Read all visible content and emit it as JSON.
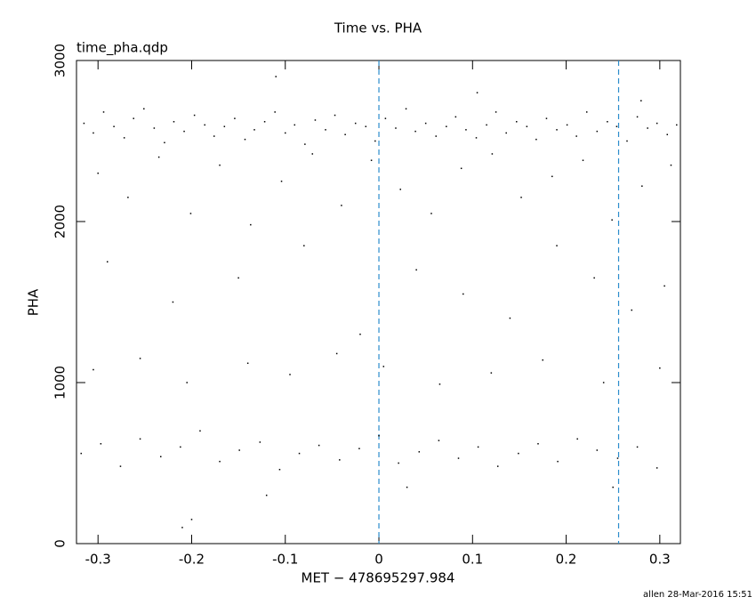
{
  "chart_data": {
    "type": "scatter",
    "title": "Time vs. PHA",
    "label": "time_pha.qdp",
    "xlabel": "MET − 478695297.984",
    "ylabel": "PHA",
    "footer": "allen 28-Mar-2016 15:51",
    "xlim": [
      -0.323,
      0.322
    ],
    "ylim": [
      0,
      3000
    ],
    "xticks": [
      -0.3,
      -0.2,
      -0.1,
      0,
      0.1,
      0.2,
      0.3
    ],
    "yticks": [
      0,
      1000,
      2000,
      3000
    ],
    "vlines": [
      0,
      0.256
    ],
    "vline_color": "#2b8ccc",
    "color": "#000000",
    "x": [
      -0.315,
      -0.305,
      -0.294,
      -0.283,
      -0.272,
      -0.262,
      -0.251,
      -0.24,
      -0.229,
      -0.219,
      -0.208,
      -0.197,
      -0.186,
      -0.176,
      -0.165,
      -0.154,
      -0.143,
      -0.133,
      -0.122,
      -0.111,
      -0.1,
      -0.09,
      -0.079,
      -0.068,
      -0.057,
      -0.047,
      -0.036,
      -0.025,
      -0.014,
      -0.004,
      0.007,
      0.018,
      0.029,
      0.039,
      0.05,
      0.061,
      0.072,
      0.082,
      0.093,
      0.104,
      0.115,
      0.125,
      0.136,
      0.147,
      0.158,
      0.168,
      0.179,
      0.19,
      0.201,
      0.211,
      0.222,
      0.233,
      0.244,
      0.254,
      0.265,
      0.276,
      0.287,
      0.297,
      0.308,
      0.318,
      -0.3,
      -0.268,
      -0.235,
      -0.201,
      -0.17,
      -0.137,
      -0.104,
      -0.071,
      -0.04,
      -0.008,
      0.023,
      0.056,
      0.088,
      0.121,
      0.152,
      0.185,
      0.218,
      0.249,
      0.281,
      0.312,
      -0.29,
      -0.22,
      -0.15,
      -0.08,
      -0.02,
      0.04,
      0.09,
      0.14,
      0.19,
      0.23,
      0.27,
      0.305,
      -0.305,
      -0.255,
      -0.205,
      -0.14,
      -0.095,
      -0.045,
      0.005,
      0.065,
      0.12,
      0.175,
      0.24,
      0.3,
      -0.318,
      -0.297,
      -0.276,
      -0.255,
      -0.233,
      -0.212,
      -0.191,
      -0.17,
      -0.149,
      -0.127,
      -0.106,
      -0.085,
      -0.064,
      -0.042,
      -0.021,
      0.0,
      0.021,
      0.043,
      0.064,
      0.085,
      0.106,
      0.127,
      0.149,
      0.17,
      0.191,
      0.212,
      0.233,
      0.255,
      0.276,
      0.297,
      -0.2,
      -0.21,
      -0.12,
      0.03,
      0.25,
      -0.11,
      0.105,
      0.28
    ],
    "values": [
      2610,
      2550,
      2680,
      2590,
      2520,
      2640,
      2700,
      2580,
      2490,
      2620,
      2560,
      2660,
      2600,
      2530,
      2590,
      2640,
      2510,
      2570,
      2620,
      2680,
      2550,
      2600,
      2480,
      2630,
      2570,
      2660,
      2540,
      2610,
      2590,
      2500,
      2640,
      2580,
      2700,
      2560,
      2610,
      2530,
      2590,
      2650,
      2570,
      2520,
      2600,
      2680,
      2550,
      2620,
      2590,
      2510,
      2640,
      2570,
      2600,
      2530,
      2680,
      2560,
      2620,
      2590,
      2500,
      2650,
      2580,
      2610,
      2540,
      2600,
      2300,
      2150,
      2400,
      2050,
      2350,
      1980,
      2250,
      2420,
      2100,
      2380,
      2200,
      2050,
      2330,
      2420,
      2150,
      2280,
      2380,
      2010,
      2220,
      2350,
      1750,
      1500,
      1650,
      1850,
      1300,
      1700,
      1550,
      1400,
      1850,
      1650,
      1450,
      1600,
      1080,
      1150,
      1000,
      1120,
      1050,
      1180,
      1100,
      990,
      1060,
      1140,
      1000,
      1090,
      560,
      620,
      480,
      650,
      540,
      600,
      700,
      510,
      580,
      630,
      460,
      560,
      610,
      520,
      590,
      670,
      500,
      570,
      640,
      530,
      600,
      480,
      560,
      620,
      510,
      650,
      580,
      530,
      600,
      470,
      150,
      100,
      300,
      350,
      350,
      2900,
      2800,
      2750
    ]
  }
}
